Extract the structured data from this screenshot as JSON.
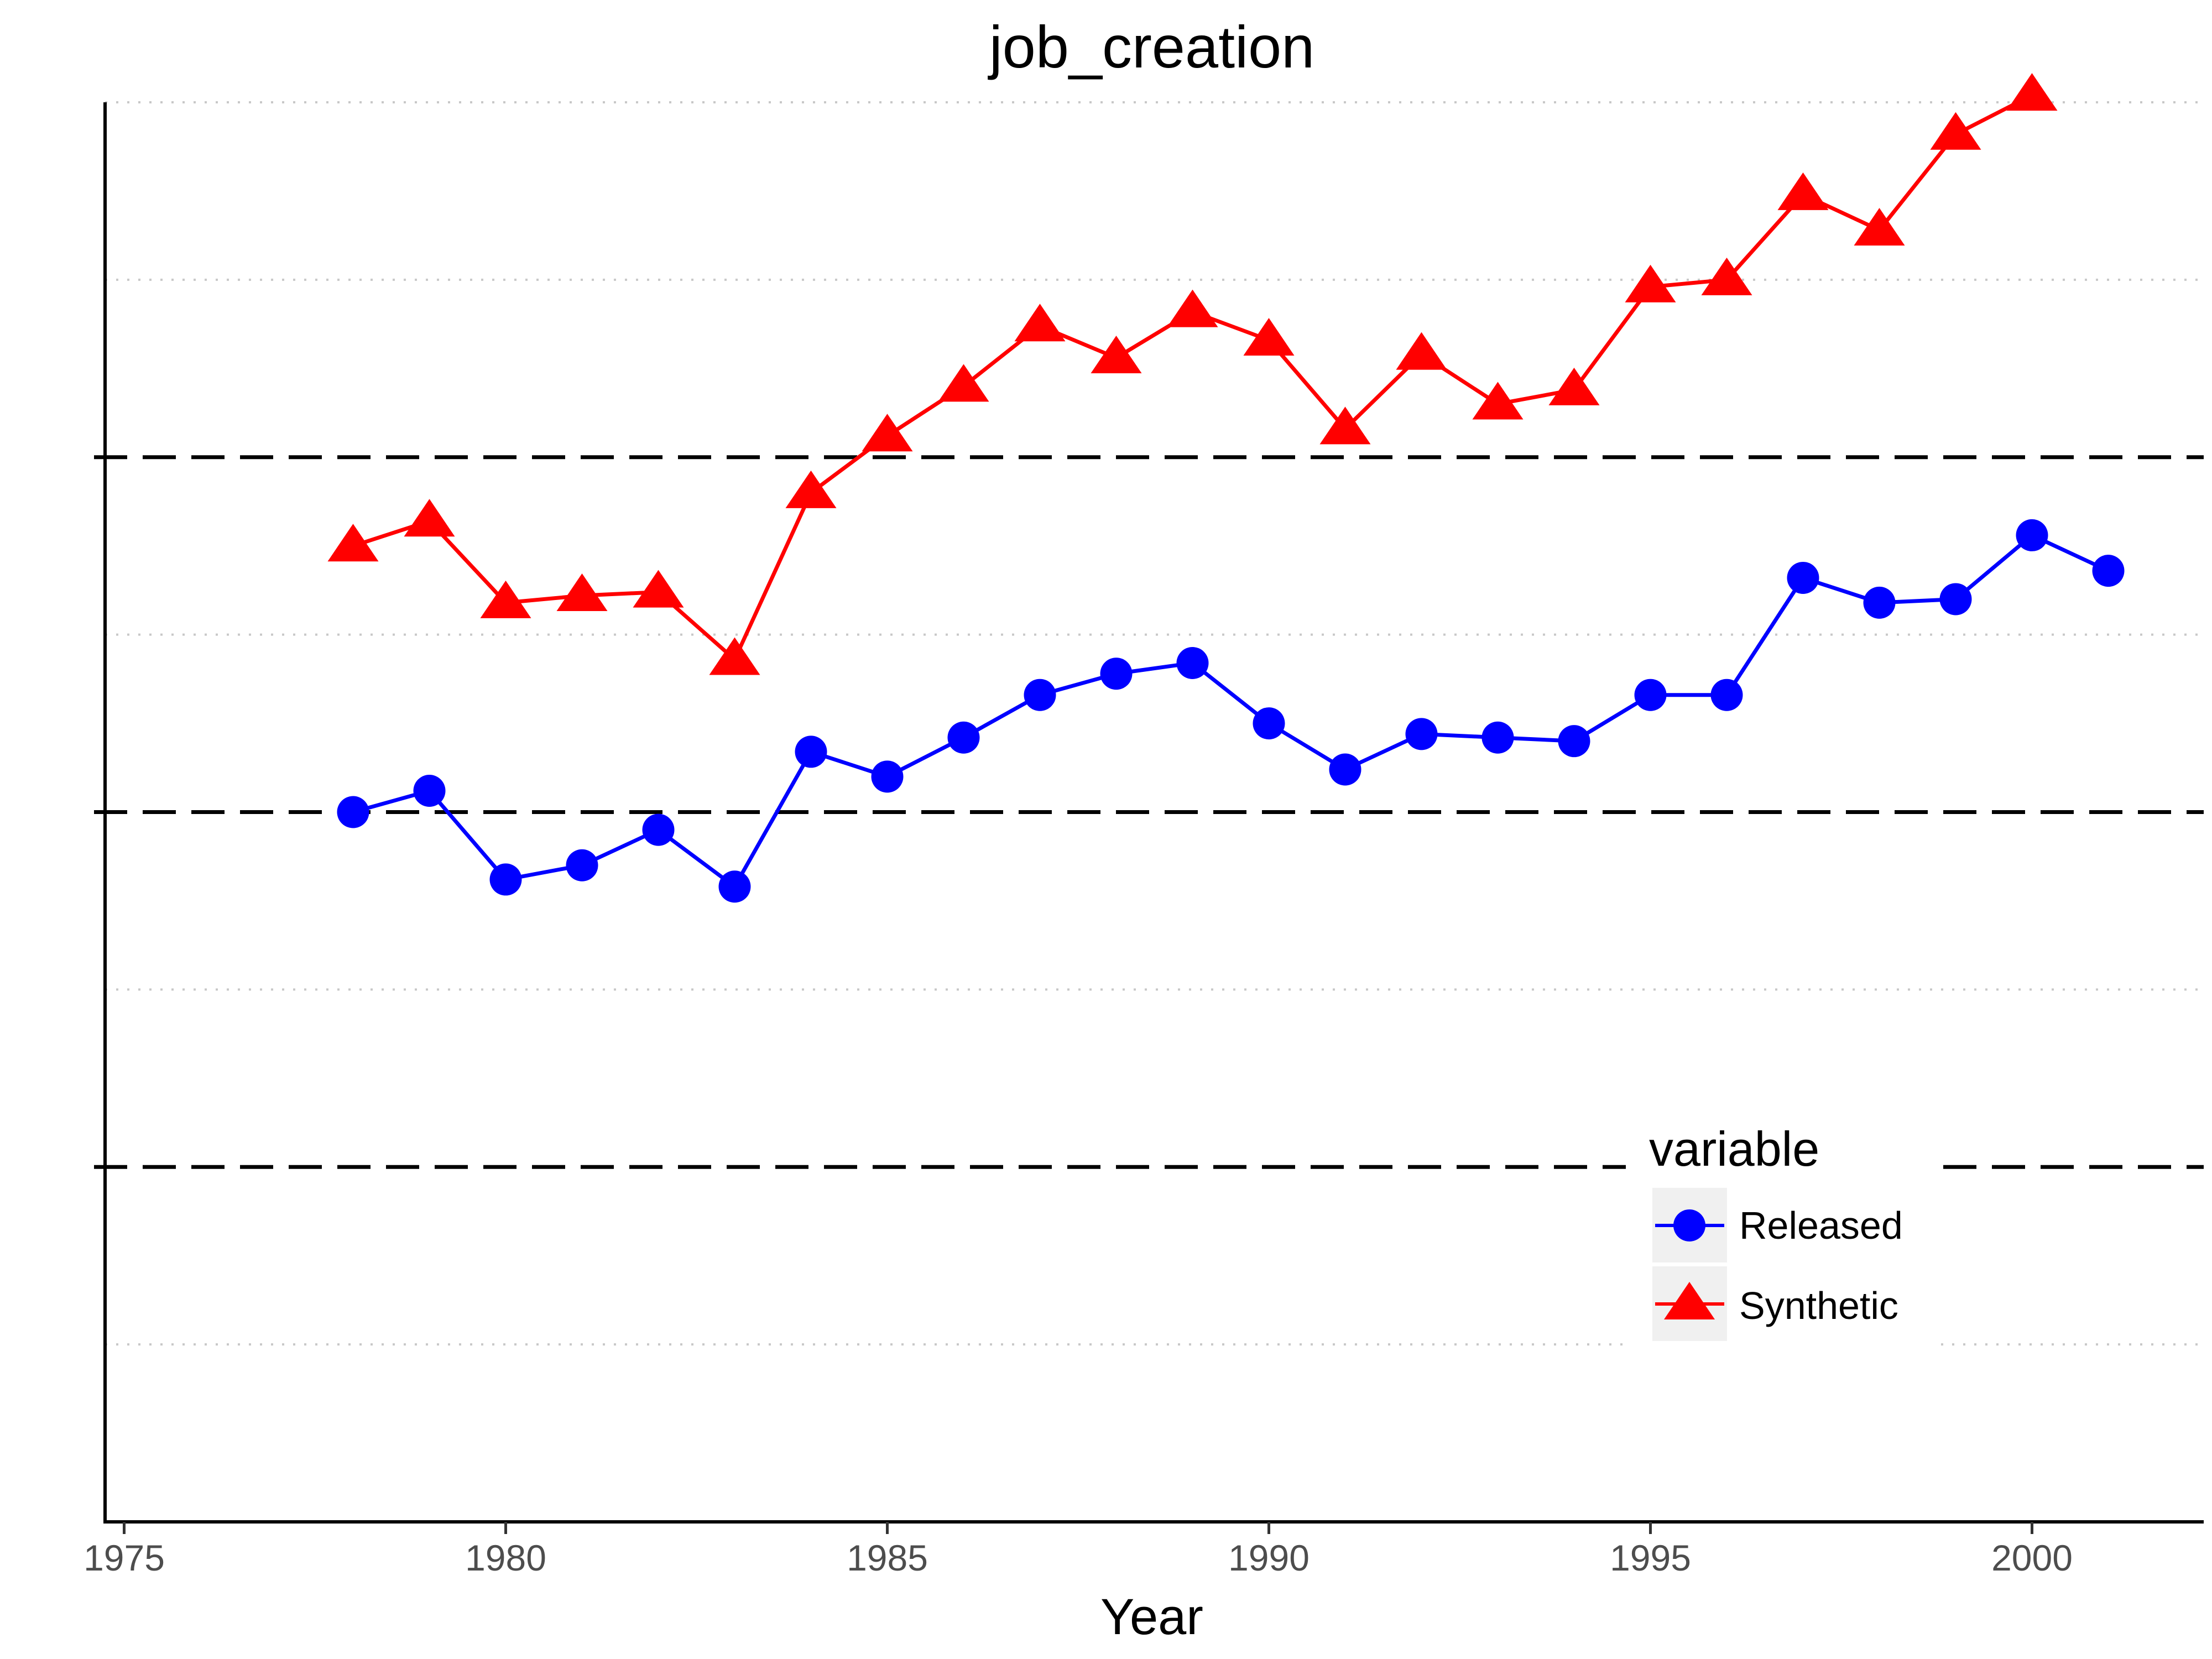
{
  "chart_data": {
    "type": "line",
    "title": "job_creation",
    "xlabel": "Year",
    "ylabel": "",
    "xlim": [
      1974.75,
      2002.25
    ],
    "x_ticks": [
      1975,
      1980,
      1985,
      1990,
      1995,
      2000
    ],
    "ylim": [
      0,
      4
    ],
    "y_dotted_gridlines": [
      0.5,
      1.5,
      2.5,
      3.5,
      4.0
    ],
    "y_dashed_reference_lines": [
      1,
      2,
      3
    ],
    "x": [
      1978,
      1979,
      1980,
      1981,
      1982,
      1983,
      1984,
      1985,
      1986,
      1987,
      1988,
      1989,
      1990,
      1991,
      1992,
      1993,
      1994,
      1995,
      1996,
      1997,
      1998,
      1999,
      2000,
      2001
    ],
    "series": [
      {
        "name": "Released",
        "color": "#0000ff",
        "marker": "circle",
        "values": [
          2.0,
          2.06,
          1.81,
          1.85,
          1.95,
          1.79,
          2.17,
          2.1,
          2.21,
          2.33,
          2.39,
          2.42,
          2.25,
          2.12,
          2.22,
          2.21,
          2.2,
          2.33,
          2.33,
          2.66,
          2.59,
          2.6,
          2.78,
          2.68
        ]
      },
      {
        "name": "Synthetic",
        "color": "#ff0000",
        "marker": "triangle",
        "values": [
          2.75,
          2.82,
          2.59,
          2.61,
          2.62,
          2.43,
          2.9,
          3.06,
          3.2,
          3.37,
          3.28,
          3.41,
          3.33,
          3.08,
          3.29,
          3.15,
          3.19,
          3.48,
          3.5,
          3.74,
          3.64,
          3.91,
          4.02,
          null
        ]
      }
    ],
    "legend": {
      "title": "variable",
      "position": "bottom-right",
      "items": [
        "Released",
        "Synthetic"
      ]
    }
  }
}
